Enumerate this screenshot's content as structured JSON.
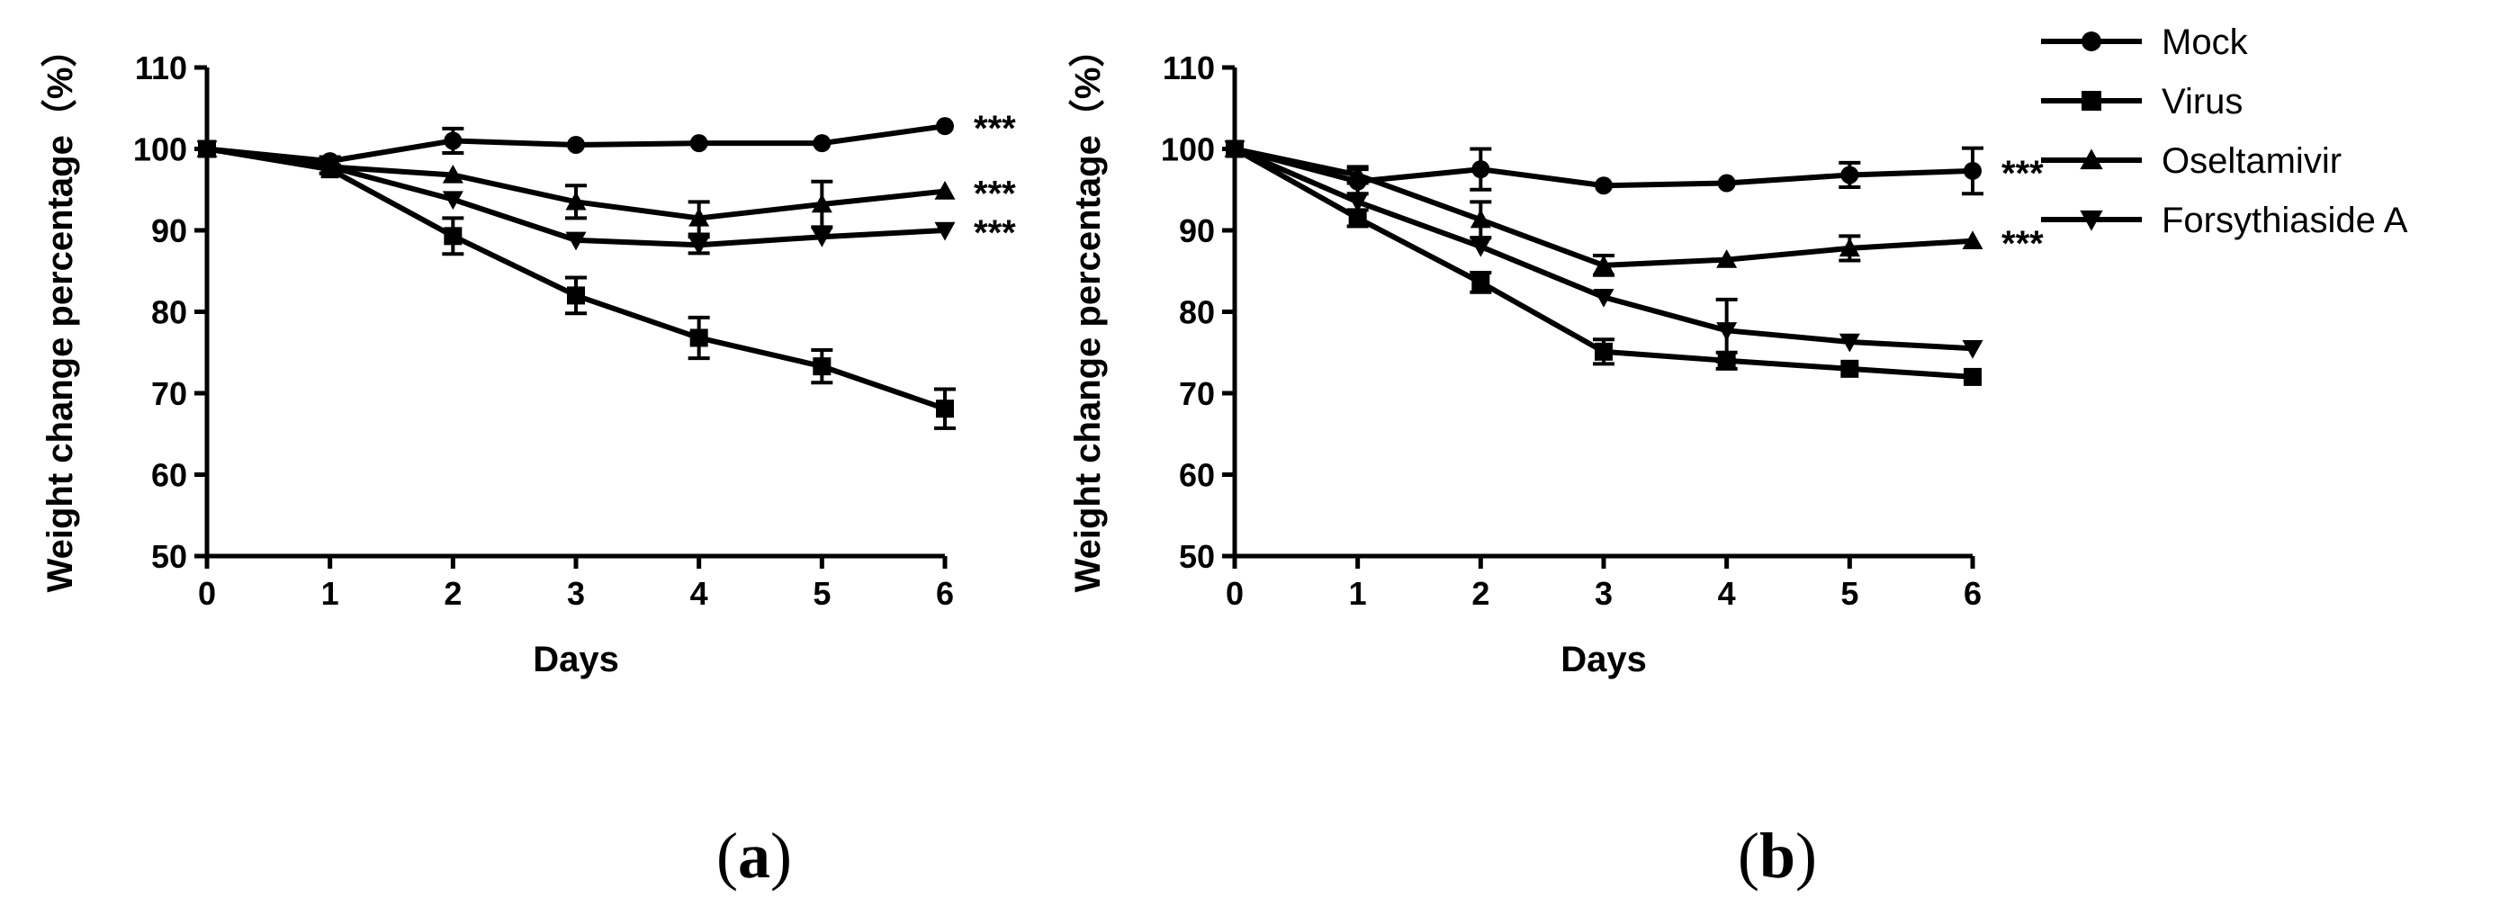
{
  "chart_data": [
    {
      "type": "line",
      "panel_label": {
        "open": "(",
        "letter": "a",
        "close": ")"
      },
      "xlabel": "Days",
      "ylabel": "Weight change percentage（%）",
      "xlim": [
        0,
        6
      ],
      "ylim": [
        50,
        110
      ],
      "xticks": [
        0,
        1,
        2,
        3,
        4,
        5,
        6
      ],
      "yticks": [
        50,
        60,
        70,
        80,
        90,
        100,
        110
      ],
      "series": [
        {
          "name": "Mock",
          "marker": "circle",
          "x": [
            0,
            1,
            2,
            3,
            4,
            5,
            6
          ],
          "y": [
            100,
            98.5,
            101,
            100.5,
            100.7,
            100.7,
            102.8
          ],
          "err": [
            0,
            0.5,
            1.5,
            0,
            0,
            0,
            0
          ],
          "annotation": "***"
        },
        {
          "name": "Virus",
          "marker": "square",
          "x": [
            0,
            1,
            2,
            3,
            4,
            5,
            6
          ],
          "y": [
            100,
            97.5,
            89.3,
            82,
            76.8,
            73.3,
            68.1
          ],
          "err": [
            0,
            0.5,
            2.2,
            2.2,
            2.5,
            2,
            2.4
          ],
          "annotation": ""
        },
        {
          "name": "Oseltamivir",
          "marker": "triangle-up",
          "x": [
            0,
            1,
            2,
            3,
            4,
            5,
            6
          ],
          "y": [
            100,
            97.8,
            96.8,
            93.5,
            91.5,
            93.2,
            94.8
          ],
          "err": [
            0,
            0,
            0,
            2,
            2,
            2.8,
            0
          ],
          "annotation": "***"
        },
        {
          "name": "Forsythiaside A",
          "marker": "triangle-down",
          "x": [
            0,
            1,
            2,
            3,
            4,
            5,
            6
          ],
          "y": [
            100,
            97.8,
            93.8,
            88.8,
            88.2,
            89.2,
            90
          ],
          "err": [
            0,
            0,
            0,
            0,
            1,
            0,
            0
          ],
          "annotation": "***"
        }
      ]
    },
    {
      "type": "line",
      "panel_label": {
        "open": "(",
        "letter": "b",
        "close": ")"
      },
      "xlabel": "Days",
      "ylabel": "Weight change percentage（%）",
      "xlim": [
        0,
        6
      ],
      "ylim": [
        50,
        110
      ],
      "xticks": [
        0,
        1,
        2,
        3,
        4,
        5,
        6
      ],
      "yticks": [
        50,
        60,
        70,
        80,
        90,
        100,
        110
      ],
      "series": [
        {
          "name": "Mock",
          "marker": "circle",
          "x": [
            0,
            1,
            2,
            3,
            4,
            5,
            6
          ],
          "y": [
            100,
            96,
            97.5,
            95.5,
            95.8,
            96.8,
            97.3
          ],
          "err": [
            0,
            1.5,
            2.5,
            0,
            0,
            1.5,
            2.8
          ],
          "annotation": "***"
        },
        {
          "name": "Virus",
          "marker": "square",
          "x": [
            0,
            1,
            2,
            3,
            4,
            5,
            6
          ],
          "y": [
            100,
            91.5,
            83.6,
            75.1,
            74,
            73,
            72
          ],
          "err": [
            0,
            1,
            1.2,
            1.5,
            1,
            0,
            0
          ],
          "annotation": ""
        },
        {
          "name": "Oseltamivir",
          "marker": "triangle-up",
          "x": [
            0,
            1,
            2,
            3,
            4,
            5,
            6
          ],
          "y": [
            100,
            96.8,
            91.3,
            85.7,
            86.4,
            87.8,
            88.7
          ],
          "err": [
            0,
            1,
            2.2,
            1.2,
            0,
            1.5,
            0
          ],
          "annotation": "***"
        },
        {
          "name": "Forsythiaside A",
          "marker": "triangle-down",
          "x": [
            0,
            1,
            2,
            3,
            4,
            5,
            6
          ],
          "y": [
            100,
            93.5,
            88,
            81.8,
            77.7,
            76.3,
            75.5
          ],
          "err": [
            0,
            0,
            0,
            0,
            3.8,
            0,
            0
          ],
          "annotation": ""
        }
      ]
    }
  ],
  "legend": [
    {
      "name": "Mock",
      "marker": "circle"
    },
    {
      "name": "Virus",
      "marker": "square"
    },
    {
      "name": "Oseltamivir",
      "marker": "triangle-up"
    },
    {
      "name": "Forsythiaside A",
      "marker": "triangle-down"
    }
  ]
}
